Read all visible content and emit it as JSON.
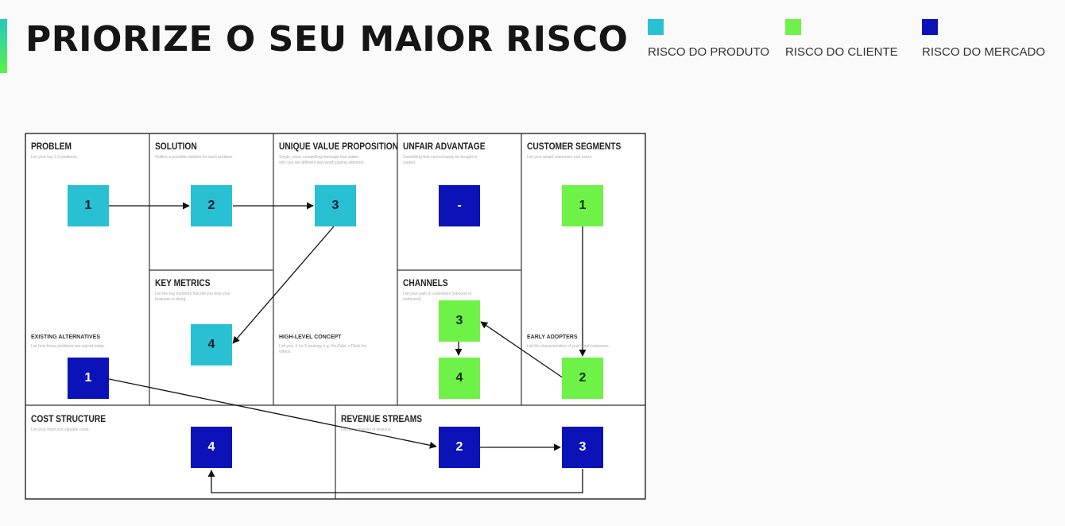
{
  "header": {
    "title": "PRIORIZE O SEU MAIOR RISCO"
  },
  "legend": [
    {
      "label": "RISCO DO PRODUTO",
      "color": "#29c0d3"
    },
    {
      "label": "RISCO DO CLIENTE",
      "color": "#6ef247"
    },
    {
      "label": "RISCO DO MERCADO",
      "color": "#0a12b8"
    }
  ],
  "canvas": {
    "problem": {
      "title": "PROBLEM",
      "desc": "List your top 1-3 problems.",
      "sub_title": "EXISTING ALTERNATIVES",
      "sub_desc": "List how these problems are solved today."
    },
    "solution": {
      "title": "SOLUTION",
      "desc": "Outline a possible solution for each problem."
    },
    "uvp": {
      "title": "UNIQUE VALUE PROPOSITION",
      "desc": "Single, clear, compelling message that states why you are different and worth paying attention.",
      "sub_title": "HIGH-LEVEL CONCEPT",
      "sub_desc": "List your X for Y analogy e.g. YouTube = Flickr for videos."
    },
    "unfair_advantage": {
      "title": "UNFAIR ADVANTAGE",
      "desc": "Something that cannot easily be bought or copied."
    },
    "customer_segments": {
      "title": "CUSTOMER SEGMENTS",
      "desc": "List your target customers and users.",
      "sub_title": "EARLY ADOPTERS",
      "sub_desc": "List the characteristics of your ideal customers."
    },
    "key_metrics": {
      "title": "KEY METRICS",
      "desc": "List the key numbers that tell you how your business is doing."
    },
    "channels": {
      "title": "CHANNELS",
      "desc": "List your path to customers (inbound or outbound)."
    },
    "cost_structure": {
      "title": "COST STRUCTURE",
      "desc": "List your fixed and variable costs."
    },
    "revenue_streams": {
      "title": "REVENUE STREAMS",
      "desc": "List your sources of revenue."
    }
  },
  "risk_boxes": {
    "problem": {
      "label": "1",
      "risk": "produto"
    },
    "solution": {
      "label": "2",
      "risk": "produto"
    },
    "uvp": {
      "label": "3",
      "risk": "produto"
    },
    "key_metrics": {
      "label": "4",
      "risk": "produto"
    },
    "unfair_advantage": {
      "label": "-",
      "risk": "mercado"
    },
    "customer_segments": {
      "label": "1",
      "risk": "cliente"
    },
    "early_adopters": {
      "label": "2",
      "risk": "cliente"
    },
    "channels_top": {
      "label": "3",
      "risk": "cliente"
    },
    "channels_bottom": {
      "label": "4",
      "risk": "cliente"
    },
    "existing_alternatives": {
      "label": "1",
      "risk": "mercado"
    },
    "revenue_left": {
      "label": "2",
      "risk": "mercado"
    },
    "revenue_right": {
      "label": "3",
      "risk": "mercado"
    },
    "cost_structure": {
      "label": "4",
      "risk": "mercado"
    }
  },
  "colors": {
    "produto": "#29c0d3",
    "cliente": "#6ef247",
    "mercado": "#0a12b8"
  }
}
